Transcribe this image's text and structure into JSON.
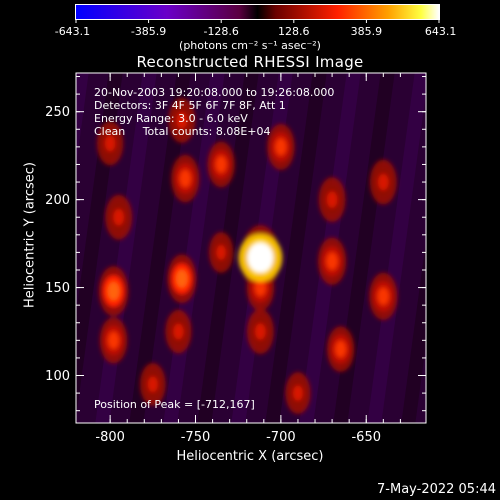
{
  "chart_data": {
    "type": "heatmap",
    "title": "Reconstructed RHESSI Image",
    "xlabel": "Heliocentric X (arcsec)",
    "ylabel": "Heliocentric Y (arcsec)",
    "xlim": [
      -820,
      -615
    ],
    "ylim": [
      73,
      272
    ],
    "x_ticks": [
      -800,
      -750,
      -700,
      -650
    ],
    "y_ticks": [
      100,
      150,
      200,
      250
    ],
    "colorbar": {
      "range": [
        -643.1,
        643.1
      ],
      "ticks": [
        "-643.1",
        "-385.9",
        "-128.6",
        "128.6",
        "385.9",
        "643.1"
      ],
      "units_label": "(photons cm⁻² s⁻¹ asec⁻²)",
      "colormap": "blue-purple-red-yellow-white"
    },
    "annotations": [
      "20-Nov-2003 19:20:08.000 to 19:26:08.000",
      "Detectors: 3F 4F 5F 6F 7F 8F, Att 1",
      "Energy Range: 3.0 - 6.0 keV",
      "Clean     Total counts: 8.08E+04"
    ],
    "peak_label": "Position of Peak = [-712,167]",
    "peak": {
      "x": -712,
      "y": 167,
      "value": 643.1
    },
    "blobs": [
      {
        "x": -712,
        "y": 167,
        "value": 640
      },
      {
        "x": -712,
        "y": 150,
        "value": 330
      },
      {
        "x": -712,
        "y": 125,
        "value": 300
      },
      {
        "x": -700,
        "y": 230,
        "value": 330
      },
      {
        "x": -735,
        "y": 220,
        "value": 320
      },
      {
        "x": -758,
        "y": 245,
        "value": 300
      },
      {
        "x": -756,
        "y": 212,
        "value": 360
      },
      {
        "x": -758,
        "y": 155,
        "value": 390
      },
      {
        "x": -760,
        "y": 125,
        "value": 270
      },
      {
        "x": -798,
        "y": 148,
        "value": 420
      },
      {
        "x": -798,
        "y": 120,
        "value": 330
      },
      {
        "x": -795,
        "y": 190,
        "value": 300
      },
      {
        "x": -800,
        "y": 232,
        "value": 280
      },
      {
        "x": -670,
        "y": 200,
        "value": 300
      },
      {
        "x": -670,
        "y": 165,
        "value": 360
      },
      {
        "x": -665,
        "y": 115,
        "value": 320
      },
      {
        "x": -640,
        "y": 145,
        "value": 360
      },
      {
        "x": -640,
        "y": 210,
        "value": 300
      },
      {
        "x": -775,
        "y": 95,
        "value": 250
      },
      {
        "x": -690,
        "y": 90,
        "value": 230
      },
      {
        "x": -735,
        "y": 170,
        "value": 200
      }
    ]
  },
  "footer": {
    "date": "7-May-2022 05:44"
  }
}
